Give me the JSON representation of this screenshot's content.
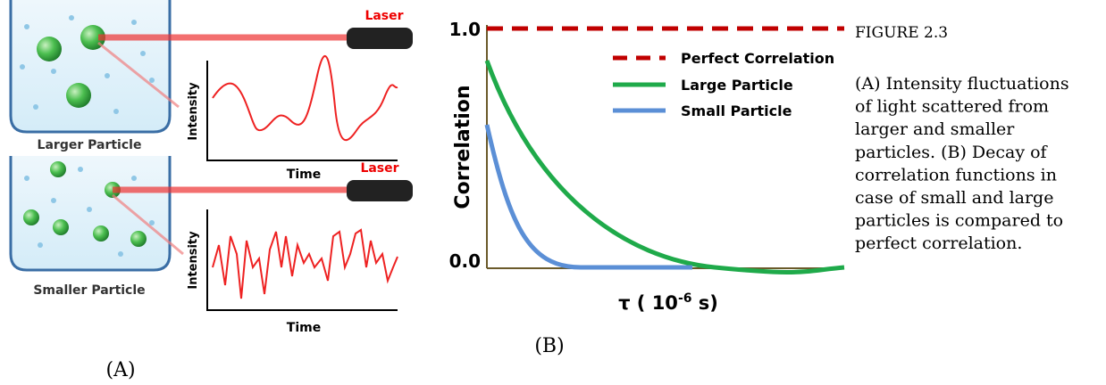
{
  "panel_a": {
    "label": "(A)",
    "top": {
      "laser": "Laser",
      "particle": "Larger Particle",
      "y_label": "Intensity",
      "x_label": "Time"
    },
    "bottom": {
      "laser": "Laser",
      "particle": "Smaller Particle",
      "y_label": "Intensity",
      "x_label": "Time"
    }
  },
  "panel_b": {
    "label": "(B)",
    "y_label": "Correlation",
    "x_label_base": "τ ( 10",
    "x_label_exp": "-6",
    "x_label_unit": " s)",
    "tick_top": "1.0",
    "tick_bottom": "0.0",
    "legend": [
      "Perfect Correlation",
      "Large Particle",
      "Small Particle"
    ]
  },
  "caption": {
    "title": "FIGURE 2.3",
    "lines": [
      "(A) Intensity fluctuations",
      "of light scattered from",
      "larger and smaller",
      "particles. (B) Decay of",
      "correlation functions in",
      "case of small and large",
      "particles is compared to",
      "perfect correlation."
    ]
  }
}
